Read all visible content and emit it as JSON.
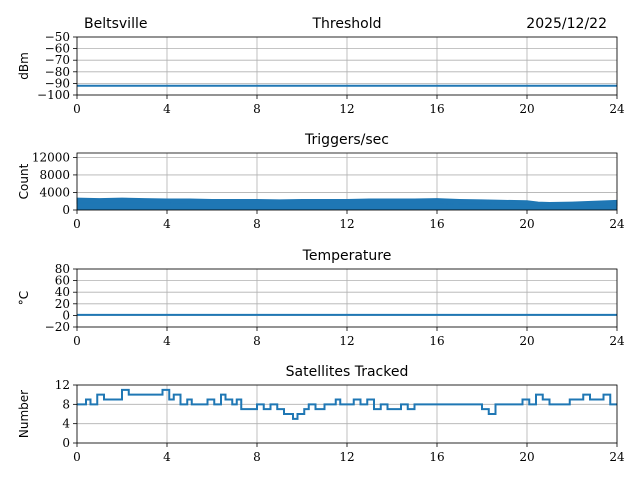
{
  "header": {
    "station": "Beltsville",
    "date": "2025/12/22"
  },
  "chart_data": [
    {
      "type": "line",
      "title": "Threshold",
      "ylabel": "dBm",
      "xlim": [
        0,
        24
      ],
      "ylim": [
        -100,
        -50
      ],
      "xticks": [
        0,
        4,
        8,
        12,
        16,
        20,
        24
      ],
      "yticks": [
        -100,
        -90,
        -80,
        -70,
        -60,
        -50
      ],
      "ytick_labels": [
        "−100",
        "−90",
        "−80",
        "−70",
        "−60",
        "−50"
      ],
      "grid": true,
      "color": "#1f77b4",
      "x": [
        0,
        24
      ],
      "y": [
        -92,
        -92
      ]
    },
    {
      "type": "area",
      "title": "Triggers/sec",
      "ylabel": "Count",
      "xlim": [
        0,
        24
      ],
      "ylim": [
        0,
        13000
      ],
      "xticks": [
        0,
        4,
        8,
        12,
        16,
        20,
        24
      ],
      "yticks": [
        0,
        4000,
        8000,
        12000
      ],
      "ytick_labels": [
        "0",
        "4000",
        "8000",
        "12000"
      ],
      "grid": true,
      "color": "#1f77b4",
      "x": [
        0,
        1,
        2,
        3,
        4,
        5,
        6,
        7,
        8,
        9,
        10,
        11,
        12,
        13,
        14,
        15,
        16,
        17,
        18,
        19,
        20,
        20.5,
        21,
        22,
        23,
        24
      ],
      "y_low": [
        1500,
        1500,
        1500,
        1500,
        1500,
        1400,
        1400,
        1400,
        1400,
        1400,
        1400,
        1400,
        1400,
        1400,
        1400,
        1400,
        1400,
        1300,
        1300,
        1200,
        1200,
        900,
        800,
        800,
        900,
        1000
      ],
      "y_high": [
        2700,
        2600,
        2700,
        2600,
        2500,
        2500,
        2400,
        2400,
        2400,
        2300,
        2400,
        2400,
        2400,
        2500,
        2500,
        2500,
        2600,
        2400,
        2300,
        2200,
        2100,
        1800,
        1700,
        1800,
        2000,
        2200
      ]
    },
    {
      "type": "line",
      "title": "Temperature",
      "ylabel": "°C",
      "xlim": [
        0,
        24
      ],
      "ylim": [
        -20,
        80
      ],
      "xticks": [
        0,
        4,
        8,
        12,
        16,
        20,
        24
      ],
      "yticks": [
        -20,
        0,
        20,
        40,
        60,
        80
      ],
      "ytick_labels": [
        "−20",
        "0",
        "20",
        "40",
        "60",
        "80"
      ],
      "grid": true,
      "color": "#1f77b4",
      "x": [
        0,
        24
      ],
      "y": [
        1,
        1
      ]
    },
    {
      "type": "line",
      "title": "Satellites Tracked",
      "ylabel": "Number",
      "xlim": [
        0,
        24
      ],
      "ylim": [
        0,
        12
      ],
      "xticks": [
        0,
        4,
        8,
        12,
        16,
        20,
        24
      ],
      "yticks": [
        0,
        4,
        8,
        12
      ],
      "ytick_labels": [
        "0",
        "4",
        "8",
        "12"
      ],
      "grid": true,
      "color": "#1f77b4",
      "step": true,
      "x": [
        0,
        0.4,
        0.6,
        0.9,
        1.2,
        2.0,
        2.3,
        2.6,
        3.4,
        3.8,
        4.1,
        4.3,
        4.6,
        4.9,
        5.1,
        5.8,
        6.1,
        6.4,
        6.6,
        6.9,
        7.1,
        7.3,
        7.5,
        8.0,
        8.3,
        8.6,
        8.9,
        9.2,
        9.6,
        9.8,
        10.1,
        10.3,
        10.6,
        11.0,
        11.2,
        11.5,
        11.7,
        12.0,
        12.3,
        12.6,
        12.9,
        13.2,
        13.5,
        13.8,
        14.1,
        14.4,
        14.7,
        15.0,
        15.3,
        15.6,
        15.9,
        16.2,
        16.5,
        16.8,
        17.1,
        17.4,
        17.7,
        18.0,
        18.3,
        18.6,
        18.9,
        19.2,
        19.5,
        19.8,
        20.1,
        20.4,
        20.7,
        21.0,
        21.3,
        21.6,
        21.9,
        22.2,
        22.5,
        22.8,
        23.1,
        23.4,
        23.7,
        24.0
      ],
      "y": [
        8,
        9,
        8,
        10,
        9,
        11,
        10,
        10,
        10,
        11,
        9,
        10,
        8,
        9,
        8,
        9,
        8,
        10,
        9,
        8,
        9,
        7,
        7,
        8,
        7,
        8,
        7,
        6,
        5,
        6,
        7,
        8,
        7,
        8,
        8,
        9,
        8,
        8,
        9,
        8,
        9,
        7,
        8,
        7,
        7,
        8,
        7,
        8,
        8,
        8,
        8,
        8,
        8,
        8,
        8,
        8,
        8,
        7,
        6,
        8,
        8,
        8,
        8,
        9,
        8,
        10,
        9,
        8,
        8,
        8,
        9,
        9,
        10,
        9,
        9,
        10,
        8,
        8
      ]
    }
  ]
}
